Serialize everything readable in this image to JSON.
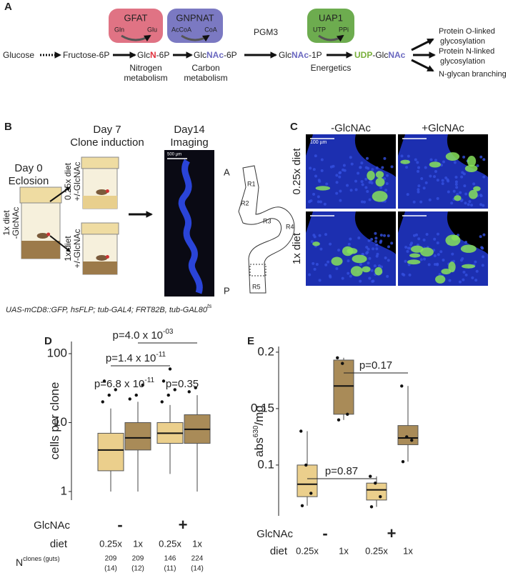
{
  "panel_a": {
    "label": "A",
    "metabolites": [
      [
        "Glucose"
      ],
      [
        "Fructose-6P"
      ],
      [
        "Glc",
        "N",
        "-6P"
      ],
      [
        "Glc",
        "NAc",
        "-6P"
      ],
      [
        "Glc",
        "NAc",
        "-1P"
      ],
      [
        "UDP",
        "-Glc",
        "NAc"
      ]
    ],
    "enzymes": [
      {
        "name": "GFAT",
        "in": "Gln",
        "out": "Glu"
      },
      {
        "name": "GNPNAT",
        "in": "AcCoA",
        "out": "CoA"
      },
      {
        "name": "PGM3"
      },
      {
        "name": "UAP1",
        "in": "UTP",
        "out": "PPi"
      }
    ],
    "processes": [
      [
        "Nitrogen",
        "metabolism"
      ],
      [
        "Carbon",
        "metabolism"
      ],
      [
        "Energetics"
      ]
    ],
    "outputs": [
      [
        "Protein O-linked",
        "glycosylation"
      ],
      [
        "Protein N-linked",
        "glycosylation"
      ],
      [
        "N-glycan branching"
      ]
    ]
  },
  "panel_b": {
    "label": "B",
    "steps": [
      [
        "Day 0",
        "Eclosion"
      ],
      [
        "Day 7",
        "Clone induction"
      ],
      [
        "Day14",
        "Imaging"
      ]
    ],
    "vial_labels": [
      [
        "1x diet",
        "-GlcNAc"
      ],
      [
        "0.25x diet",
        "+/-GlcNAc"
      ],
      [
        "1x diet",
        "+/-GlcNAc"
      ]
    ],
    "image_scale": "500 µm",
    "regions": [
      "A",
      "R1",
      "R2",
      "R3",
      "R4",
      "R5",
      "P"
    ],
    "genotype": {
      "text": "UAS-mCD8::GFP, hsFLP; tub-GAL4; FRT82B, tub-GAL80",
      "sup": "ts"
    }
  },
  "panel_c": {
    "label": "C",
    "columns": [
      "-GlcNAc",
      "+GlcNAc"
    ],
    "rows": [
      "0.25x diet",
      "1x diet"
    ],
    "image_scale": "100 µm"
  },
  "panel_d": {
    "label": "D"
  },
  "panel_e": {
    "label": "E"
  },
  "chart_data": [
    {
      "type": "box",
      "y_label": {
        "text": "cells per clone"
      },
      "log_y": true,
      "ylim": [
        0.75,
        150
      ],
      "yticks": [
        1,
        10,
        100
      ],
      "colors": [
        "#ebcf8c",
        "#a98b58",
        "#ebcf8c",
        "#a98b58"
      ],
      "group_title": "GlcNAc",
      "groups": [
        "-",
        "+"
      ],
      "category_title": "diet",
      "categories": [
        "0.25x",
        "1x",
        "0.25x",
        "1x"
      ],
      "boxes": [
        {
          "low": 1,
          "q1": 2,
          "median": 4,
          "q3": 7,
          "high": 16,
          "points": [
            20,
            25,
            30,
            40
          ]
        },
        {
          "low": 1,
          "q1": 4,
          "median": 6,
          "q3": 10,
          "high": 20,
          "points": [
            22,
            25,
            35
          ]
        },
        {
          "low": 1.8,
          "q1": 5,
          "median": 7,
          "q3": 10,
          "high": 18,
          "points": [
            20,
            25,
            30,
            40,
            60
          ]
        },
        {
          "low": 1,
          "q1": 5,
          "median": 8,
          "q3": 13,
          "high": 25,
          "points": [
            28,
            32
          ]
        }
      ],
      "annotations": [
        {
          "text": "p=4.0 x 10",
          "exp": "-03"
        },
        {
          "text": "p=1.4 x 10",
          "exp": "-11"
        },
        {
          "text": "p=6.8 x 10",
          "exp": "-11"
        },
        {
          "text": "p=0.35"
        }
      ],
      "n_title": {
        "text": "N",
        "sup": "clones (guts)"
      },
      "n_clones": [
        209,
        209,
        146,
        224
      ],
      "n_guts": [
        "(14)",
        "(12)",
        "(11)",
        "(14)"
      ]
    },
    {
      "type": "box",
      "y_label": {
        "text": "abs",
        "sup": "630",
        "tail": "/mg"
      },
      "log_y": false,
      "ylim": [
        0.055,
        0.205
      ],
      "yticks": [
        0.1,
        0.15,
        0.2
      ],
      "colors": [
        "#ebcf8c",
        "#a98b58",
        "#ebcf8c",
        "#a98b58"
      ],
      "group_title": "GlcNAc",
      "groups": [
        "-",
        "+"
      ],
      "category_title": "diet",
      "categories": [
        "0.25x",
        "1x",
        "0.25x",
        "1x"
      ],
      "boxes": [
        {
          "low": 0.064,
          "q1": 0.072,
          "median": 0.083,
          "q3": 0.1,
          "high": 0.13,
          "points": [
            0.13,
            0.1,
            0.075,
            0.064
          ]
        },
        {
          "low": 0.14,
          "q1": 0.145,
          "median": 0.17,
          "q3": 0.193,
          "high": 0.195,
          "points": [
            0.195,
            0.19,
            0.145,
            0.14
          ]
        },
        {
          "low": 0.063,
          "q1": 0.069,
          "median": 0.078,
          "q3": 0.084,
          "high": 0.09,
          "points": [
            0.09,
            0.084,
            0.072,
            0.063
          ]
        },
        {
          "low": 0.103,
          "q1": 0.118,
          "median": 0.124,
          "q3": 0.135,
          "high": 0.17,
          "points": [
            0.17,
            0.125,
            0.122,
            0.103
          ]
        }
      ],
      "annotations": [
        {
          "text": "p=0.17"
        },
        {
          "text": "p=0.87"
        }
      ]
    }
  ]
}
